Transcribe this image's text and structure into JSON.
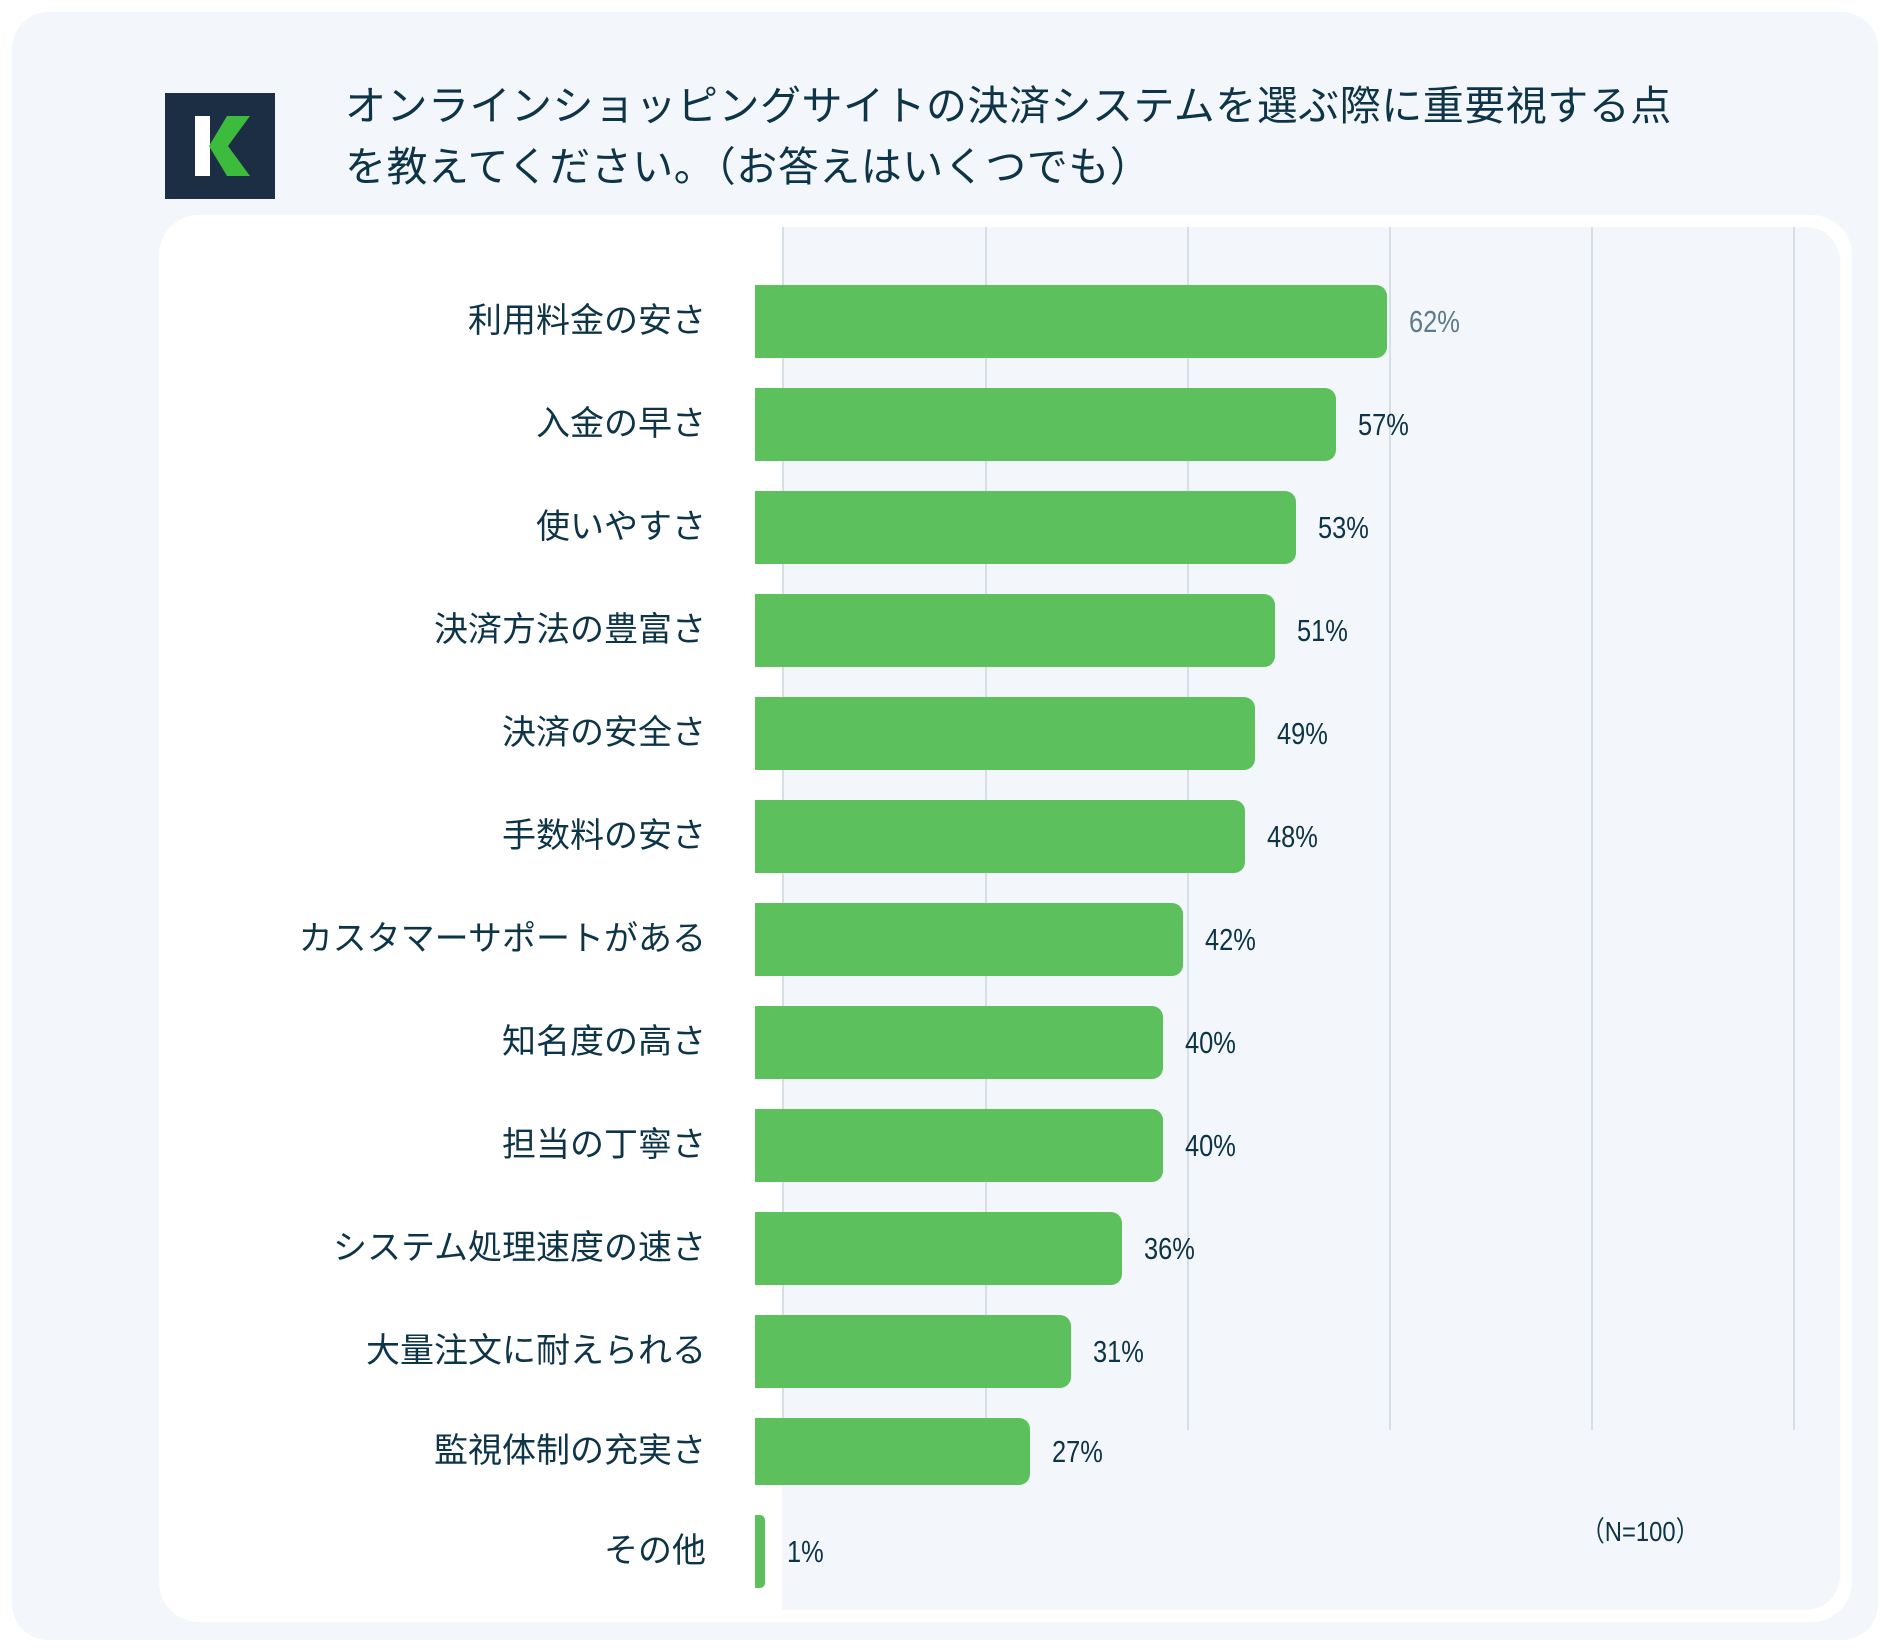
{
  "header": {
    "logo_letter": "K",
    "title": "オンラインショッピングサイトの決済システムを選ぶ際に重要視する点\nを教えてください。（お答えはいくつでも）"
  },
  "note": "（N=100）",
  "colors": {
    "bar": "#5cc15c",
    "panel_bg": "#f3f7fb",
    "text": "#0e3448",
    "logo_bg": "#1b2e44",
    "logo_accent": "#3dbb3d",
    "gridline": "#d6dee6",
    "top_value_label": "#5f7a8c"
  },
  "chart_data": {
    "type": "bar",
    "orientation": "horizontal",
    "title": "オンラインショッピングサイトの決済システムを選ぶ際に重要視する点を教えてください。（お答えはいくつでも）",
    "categories": [
      "利用料金の安さ",
      "入金の早さ",
      "使いやすさ",
      "決済方法の豊富さ",
      "決済の安全さ",
      "手数料の安さ",
      "カスタマーサポートがある",
      "知名度の高さ",
      "担当の丁寧さ",
      "システム処理速度の速さ",
      "大量注文に耐えられる",
      "監視体制の充実さ",
      "その他"
    ],
    "values": [
      62,
      57,
      53,
      51,
      49,
      48,
      42,
      40,
      40,
      36,
      31,
      27,
      1
    ],
    "value_labels": [
      "62%",
      "57%",
      "53%",
      "51%",
      "49%",
      "48%",
      "42%",
      "40%",
      "40%",
      "36%",
      "31%",
      "27%",
      "1%"
    ],
    "unit": "%",
    "xlabel": "",
    "ylabel": "",
    "xlim": [
      0,
      100
    ],
    "grid": true,
    "gridline_step": 20,
    "legend": null,
    "annotation": "（N=100）"
  }
}
